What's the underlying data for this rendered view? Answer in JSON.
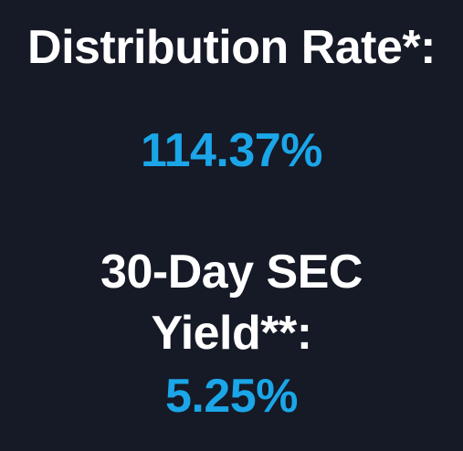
{
  "distribution_rate": {
    "label": "Distribution Rate*:",
    "value": "114.37%"
  },
  "sec_yield": {
    "label_line1": "30-Day SEC",
    "label_line2": "Yield**:",
    "value": "5.25%"
  },
  "colors": {
    "background": "#161926",
    "label": "#ffffff",
    "accent": "#1aa6e8"
  }
}
